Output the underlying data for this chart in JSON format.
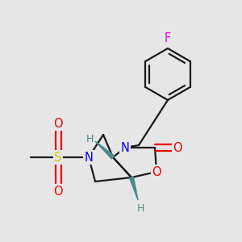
{
  "bg_color": "#e6e6e6",
  "bond_color": "#1a1a1a",
  "bond_width": 1.6,
  "atom_colors": {
    "N": "#0000ee",
    "O": "#ee0000",
    "S": "#cccc00",
    "F": "#ee00ee",
    "H": "#4a8a8a",
    "C": "#1a1a1a"
  },
  "font_size": 10.5,
  "small_font_size": 9.0
}
